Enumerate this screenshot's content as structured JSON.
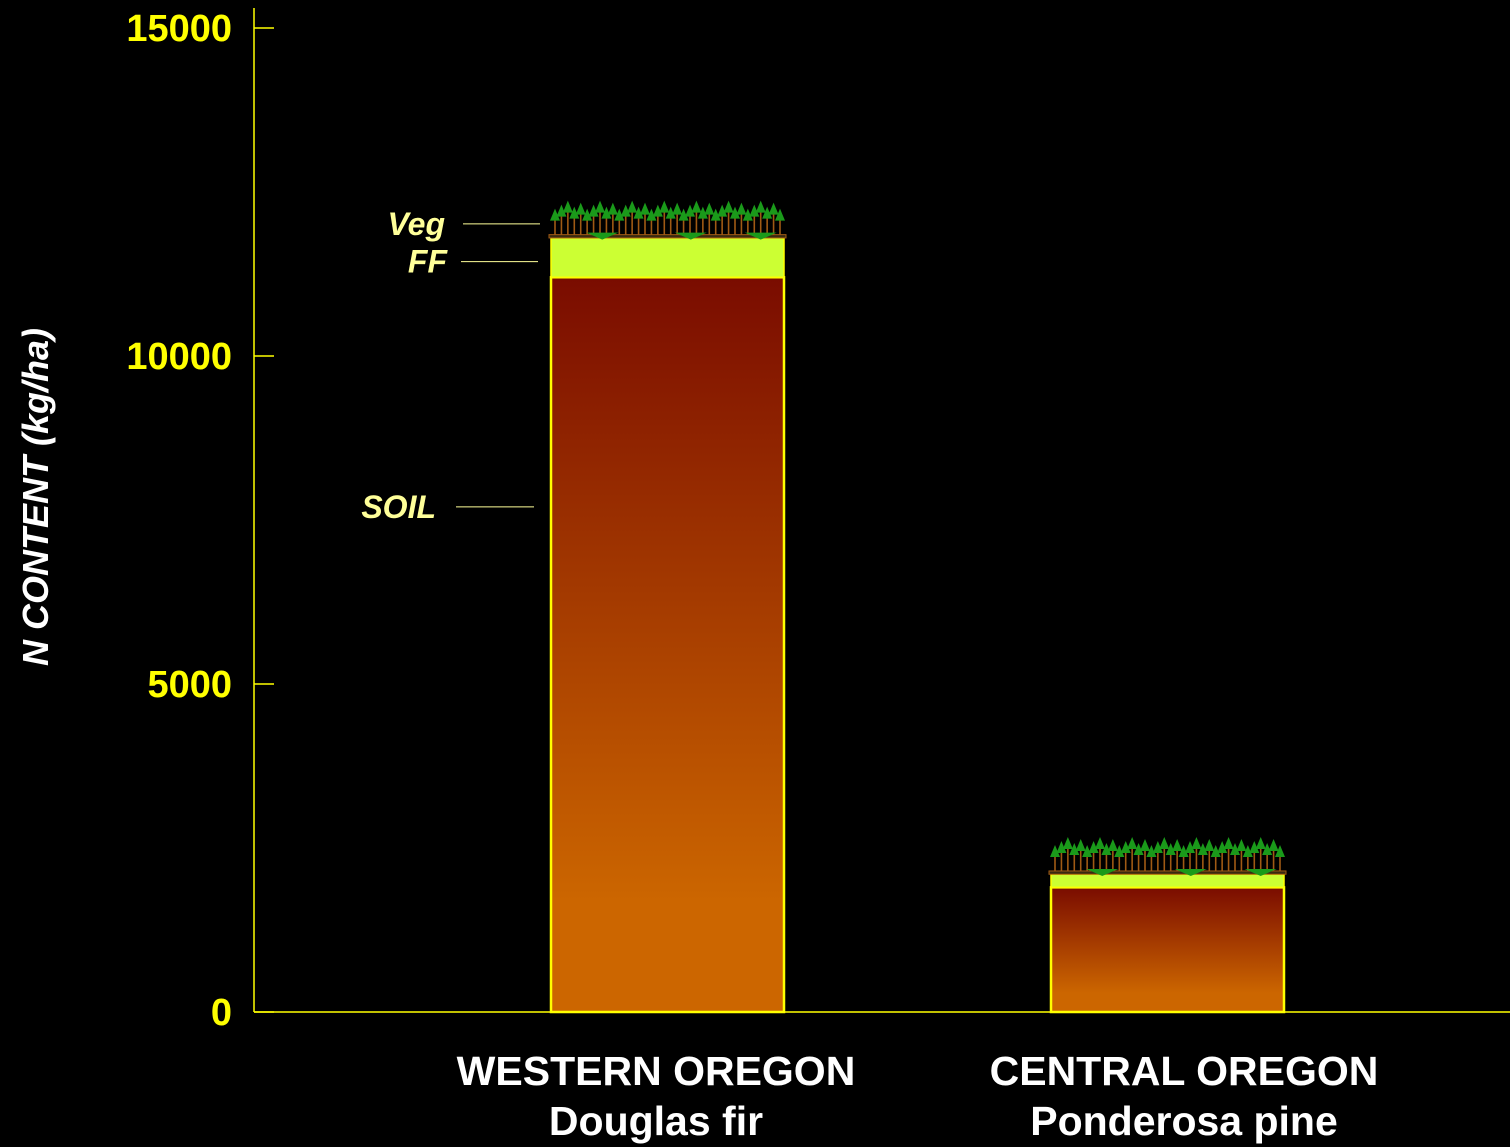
{
  "chart_data": {
    "type": "bar",
    "stacked": true,
    "ylabel": "N CONTENT (kg/ha)",
    "ylim": [
      0,
      15000
    ],
    "yticks": [
      0,
      5000,
      10000,
      15000
    ],
    "ytick_labels": [
      "0",
      "5000",
      "10000",
      "15000"
    ],
    "grid": false,
    "categories": [
      {
        "line1": "WESTERN OREGON",
        "line2": "Douglas fir"
      },
      {
        "line1": "CENTRAL OREGON",
        "line2": "Ponderosa pine"
      }
    ],
    "series": [
      {
        "name": "SOIL",
        "values": [
          11200,
          1900
        ]
      },
      {
        "name": "FF",
        "values": [
          600,
          200
        ]
      },
      {
        "name": "Veg",
        "values": [
          50,
          50
        ]
      }
    ],
    "layer_labels": [
      {
        "text": "Veg",
        "series": "Veg",
        "at_value": 11880
      },
      {
        "text": "FF",
        "series": "FF",
        "at_value": 11250
      },
      {
        "text": "SOIL",
        "series": "SOIL",
        "at_value": 7700
      }
    ],
    "colors": {
      "axis": "#ffff00",
      "tick_label": "#ffff00",
      "title": "#ffffff",
      "soil_top": "#7a0c00",
      "soil_bottom": "#cc6600",
      "ff": "#ccff33",
      "bar_outline": "#ffff00",
      "tree_crown": "#1a9a1a",
      "tree_trunk": "#a05a14",
      "layer_label": "#ffff99"
    }
  }
}
